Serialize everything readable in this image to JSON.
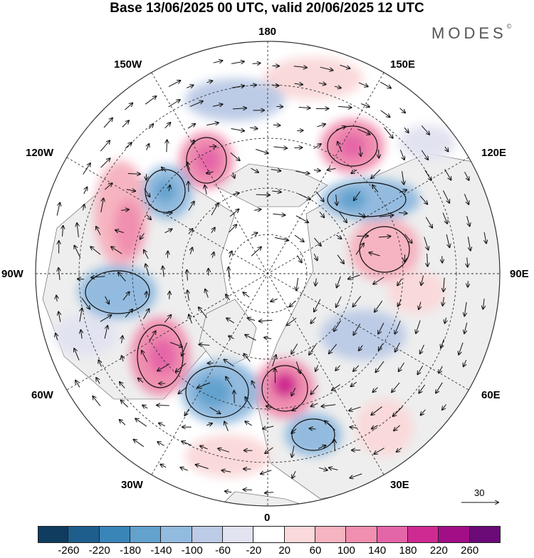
{
  "title": "Base 13/06/2025 00 UTC, valid 20/06/2025 12 UTC",
  "brand": "MODES",
  "brand_mark": "©",
  "longitude_labels": {
    "lon_180": "180",
    "lon_150e": "150E",
    "lon_120e": "120E",
    "lon_90e": "90E",
    "lon_60e": "60E",
    "lon_30e": "30E",
    "lon_0": "0",
    "lon_30w": "30W",
    "lon_60w": "60W",
    "lon_90w": "90W",
    "lon_120w": "120W",
    "lon_150w": "150W"
  },
  "reference_vector_label": "30",
  "colorbar": {
    "colors": [
      "#0f3c5f",
      "#1e5e8c",
      "#3a85b8",
      "#62a2cd",
      "#93bbdf",
      "#bccbe6",
      "#e2e3f0",
      "#ffffff",
      "#fad9da",
      "#f6b4c0",
      "#f08fb0",
      "#e566a8",
      "#cf2a91",
      "#a30e86",
      "#6b0a78"
    ],
    "ticks": [
      "-260",
      "-220",
      "-180",
      "-140",
      "-100",
      "-60",
      "-20",
      "20",
      "60",
      "100",
      "140",
      "180",
      "220",
      "260"
    ]
  },
  "colors": {
    "land": "#eeeeee",
    "ocean": "#ffffff",
    "grid": "#333333"
  }
}
